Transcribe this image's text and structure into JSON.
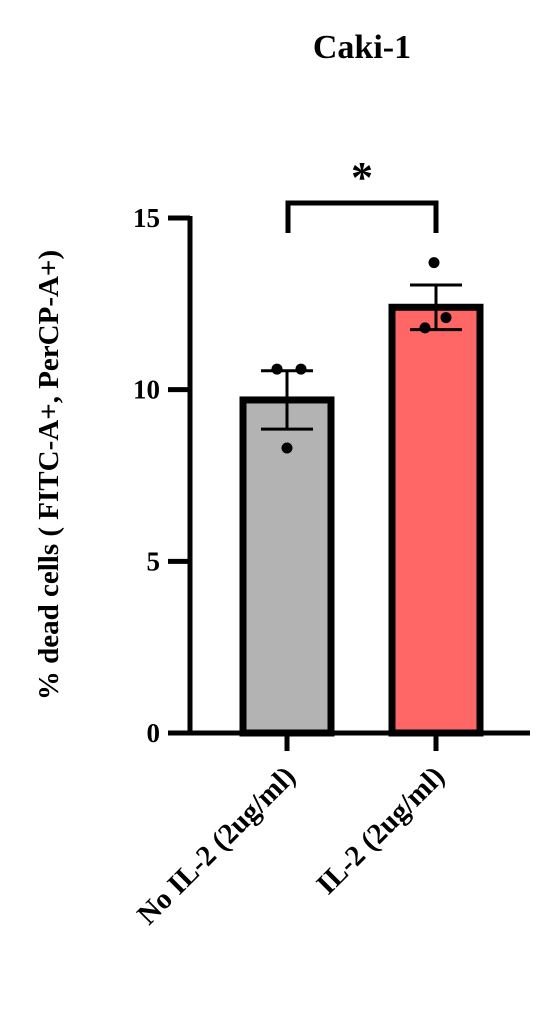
{
  "chart_data": {
    "type": "bar",
    "title": "Caki-1",
    "y_label": "% dead cells ( FITC-A+, PerCP-A+)",
    "categories": [
      "No IL-2 (2ug/ml)",
      "IL-2 (2ug/ml)"
    ],
    "values": [
      9.7,
      12.4
    ],
    "errors": [
      0.85,
      0.65
    ],
    "points": [
      [
        10.6,
        10.6,
        8.3
      ],
      [
        13.7,
        11.8,
        12.1
      ]
    ],
    "colors": [
      "#b3b3b3",
      "#ff6666"
    ],
    "ylim": [
      0,
      15
    ],
    "yticks": [
      0,
      5,
      10,
      15
    ],
    "annotation": "*"
  }
}
